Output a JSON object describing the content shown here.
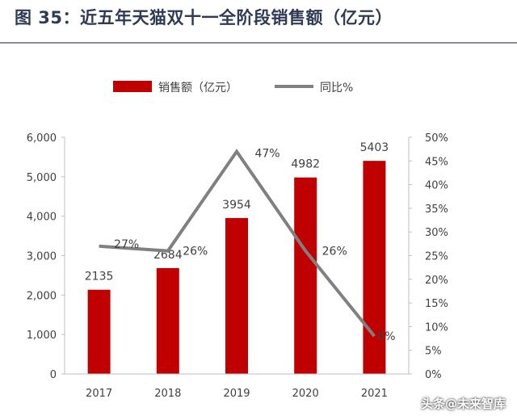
{
  "figure": {
    "title": "图 35：近五年天猫双十一全阶段销售额（亿元）"
  },
  "watermark": "头条@未来智库",
  "colors": {
    "bar": "#c00000",
    "line": "#808080",
    "axis": "#bfbfbf",
    "text": "#404040"
  },
  "chart_data": {
    "type": "bar",
    "title": "近五年天猫双十一全阶段销售额（亿元）",
    "categories": [
      "2017",
      "2018",
      "2019",
      "2020",
      "2021"
    ],
    "series": [
      {
        "name": "销售额（亿元）",
        "type": "bar",
        "axis": "left",
        "values": [
          2135,
          2684,
          3954,
          4982,
          5403
        ],
        "labels": [
          "2135",
          "2684",
          "3954",
          "4982",
          "5403"
        ]
      },
      {
        "name": "同比%",
        "type": "line",
        "axis": "right",
        "values": [
          27,
          26,
          47,
          26,
          8
        ],
        "labels": [
          "27%",
          "26%",
          "47%",
          "26%",
          "8%"
        ]
      }
    ],
    "left_axis": {
      "min": 0,
      "max": 6000,
      "ticks": [
        "0",
        "1,000",
        "2,000",
        "3,000",
        "4,000",
        "5,000",
        "6,000"
      ]
    },
    "right_axis": {
      "min": 0,
      "max": 50,
      "ticks": [
        "0%",
        "5%",
        "10%",
        "15%",
        "20%",
        "25%",
        "30%",
        "35%",
        "40%",
        "45%",
        "50%"
      ]
    },
    "legend": {
      "position": "top-center",
      "items": [
        "销售额（亿元）",
        "同比%"
      ]
    },
    "grid": false
  }
}
